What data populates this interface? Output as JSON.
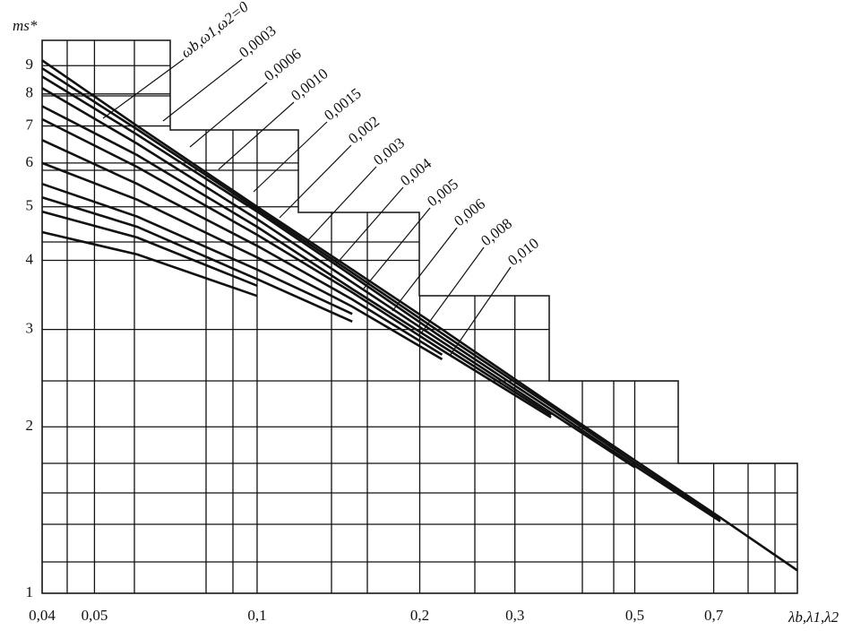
{
  "chart_data": {
    "type": "line",
    "y_label": "ms*",
    "x_label": "λb,λ1,λ2",
    "log_x": true,
    "log_y": true,
    "grid": true,
    "xlim": [
      0.04,
      1
    ],
    "ylim": [
      1,
      10
    ],
    "xticks": [
      {
        "value": 0.04,
        "label": "0,04"
      },
      {
        "value": 0.05,
        "label": "0,05"
      },
      {
        "value": 0.1,
        "label": "0,1"
      },
      {
        "value": 0.2,
        "label": "0,2"
      },
      {
        "value": 0.3,
        "label": "0,3"
      },
      {
        "value": 0.5,
        "label": "0,5"
      },
      {
        "value": 0.7,
        "label": "0,7"
      }
    ],
    "yticks": [
      1,
      2,
      3,
      4,
      5,
      6,
      7,
      8,
      9
    ],
    "x": [
      0.04,
      0.06,
      0.1,
      0.15,
      0.22,
      0.35,
      0.5,
      0.72,
      1.0
    ],
    "series": [
      {
        "name": "ωb,ω1,ω2=0",
        "color": "#111111",
        "values": [
          9.2,
          7.0,
          5.0,
          3.85,
          3.0,
          2.2,
          1.74,
          1.37,
          1.1
        ]
      },
      {
        "name": "0,0003",
        "color": "#111111",
        "values": [
          8.9,
          6.9,
          4.95,
          3.8,
          2.95,
          2.18,
          1.72,
          1.36,
          null
        ]
      },
      {
        "name": "0,0006",
        "color": "#111111",
        "values": [
          8.6,
          6.75,
          4.9,
          3.75,
          2.9,
          2.15,
          1.7,
          1.35,
          null
        ]
      },
      {
        "name": "0,0010",
        "color": "#111111",
        "values": [
          8.2,
          6.5,
          4.75,
          3.65,
          2.85,
          2.12,
          1.69,
          null,
          null
        ]
      },
      {
        "name": "0,0015",
        "color": "#111111",
        "values": [
          7.6,
          6.2,
          4.6,
          3.55,
          2.8,
          2.1,
          null,
          null,
          null
        ]
      },
      {
        "name": "0,002",
        "color": "#111111",
        "values": [
          7.2,
          5.9,
          4.45,
          3.5,
          2.75,
          2.08,
          null,
          null,
          null
        ]
      },
      {
        "name": "0,003",
        "color": "#111111",
        "values": [
          6.6,
          5.5,
          4.25,
          3.4,
          2.7,
          null,
          null,
          null,
          null
        ]
      },
      {
        "name": "0,004",
        "color": "#111111",
        "values": [
          6.0,
          5.15,
          4.05,
          3.3,
          2.65,
          null,
          null,
          null,
          null
        ]
      },
      {
        "name": "0,005",
        "color": "#111111",
        "values": [
          5.5,
          4.8,
          3.85,
          3.2,
          null,
          null,
          null,
          null,
          null
        ]
      },
      {
        "name": "0,006",
        "color": "#111111",
        "values": [
          5.2,
          4.6,
          3.7,
          3.1,
          null,
          null,
          null,
          null,
          null
        ]
      },
      {
        "name": "0,008",
        "color": "#111111",
        "values": [
          4.9,
          4.4,
          3.6,
          null,
          null,
          null,
          null,
          null,
          null
        ]
      },
      {
        "name": "0,010",
        "color": "#111111",
        "values": [
          4.5,
          4.1,
          3.45,
          null,
          null,
          null,
          null,
          null,
          null
        ]
      }
    ]
  }
}
